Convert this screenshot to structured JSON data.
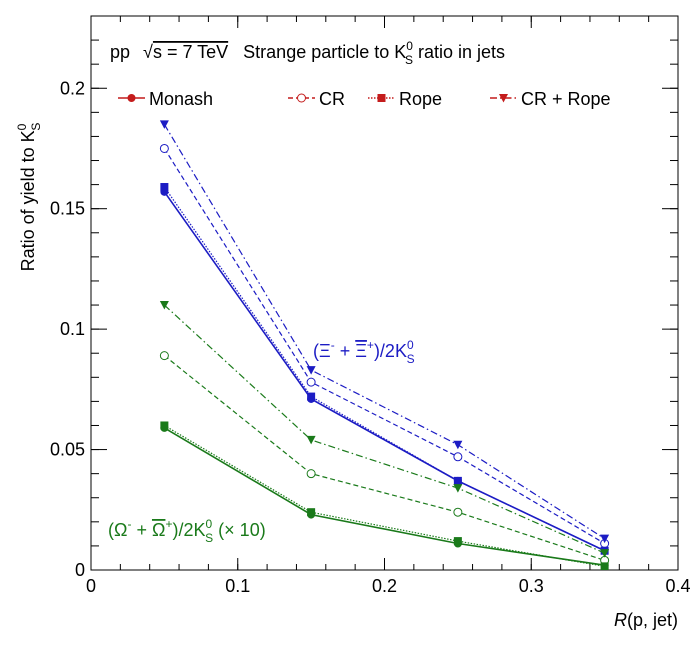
{
  "chart_data": {
    "type": "line",
    "title": {
      "system": "pp",
      "energy_label": "s = 7 TeV",
      "subtitle_pre": "Strange particle to K",
      "subtitle_post": " ratio in jets",
      "k_sup": "0",
      "k_sub": "S"
    },
    "xlabel": {
      "italic": "R",
      "rest": "(p, jet)"
    },
    "ylabel": {
      "main": "Ratio of yield to K",
      "sup": "0",
      "sub": "S"
    },
    "xlim": [
      0,
      0.4
    ],
    "ylim": [
      0,
      0.23
    ],
    "x_ticks": [
      0,
      0.1,
      0.2,
      0.3,
      0.4
    ],
    "x_tick_labels": [
      "0",
      "0.1",
      "0.2",
      "0.3",
      "0.4"
    ],
    "y_ticks": [
      0,
      0.05,
      0.1,
      0.15,
      0.2
    ],
    "y_tick_labels": [
      "0",
      "0.05",
      "0.1",
      "0.15",
      "0.2"
    ],
    "grid": false,
    "legend": {
      "placement": "top",
      "entries": [
        {
          "label": "Monash",
          "marker": "filled-circle",
          "line": "solid"
        },
        {
          "label": "CR",
          "marker": "open-circle",
          "line": "dashed"
        },
        {
          "label": "Rope",
          "marker": "filled-square",
          "line": "dotted"
        },
        {
          "label": "CR + Rope",
          "marker": "filled-triangle-down",
          "line": "dashdot"
        }
      ]
    },
    "x": [
      0.05,
      0.15,
      0.25,
      0.35
    ],
    "groups": [
      {
        "id": "xi",
        "color": "#1c1cc4",
        "label_pre": "(Ξ",
        "label_sup1": "-",
        "label_mid": " + ",
        "label_bar": "Ξ",
        "label_sup2": "+",
        "label_post": ")/2K",
        "label_ksup": "0",
        "label_ksub": "S",
        "label_scale": "",
        "series": [
          {
            "model": "Monash",
            "values": [
              0.157,
              0.071,
              0.037,
              0.008
            ]
          },
          {
            "model": "CR",
            "values": [
              0.175,
              0.078,
              0.047,
              0.011
            ]
          },
          {
            "model": "Rope",
            "values": [
              0.159,
              0.072,
              0.037,
              0.008
            ]
          },
          {
            "model": "CR + Rope",
            "values": [
              0.185,
              0.083,
              0.052,
              0.013
            ]
          }
        ]
      },
      {
        "id": "omega",
        "color": "#1a7a1a",
        "label_pre": "(Ω",
        "label_sup1": "-",
        "label_mid": " + ",
        "label_bar": "Ω",
        "label_sup2": "+",
        "label_post": ")/2K",
        "label_ksup": "0",
        "label_ksub": "S",
        "label_scale": " (× 10)",
        "series": [
          {
            "model": "Monash",
            "values": [
              0.059,
              0.023,
              0.011,
              0.002
            ]
          },
          {
            "model": "CR",
            "values": [
              0.089,
              0.04,
              0.024,
              0.004
            ]
          },
          {
            "model": "Rope",
            "values": [
              0.06,
              0.024,
              0.012,
              0.0015
            ]
          },
          {
            "model": "CR + Rope",
            "values": [
              0.11,
              0.054,
              0.034,
              0.007
            ]
          }
        ]
      }
    ],
    "legend_color": "#c41c1c"
  }
}
